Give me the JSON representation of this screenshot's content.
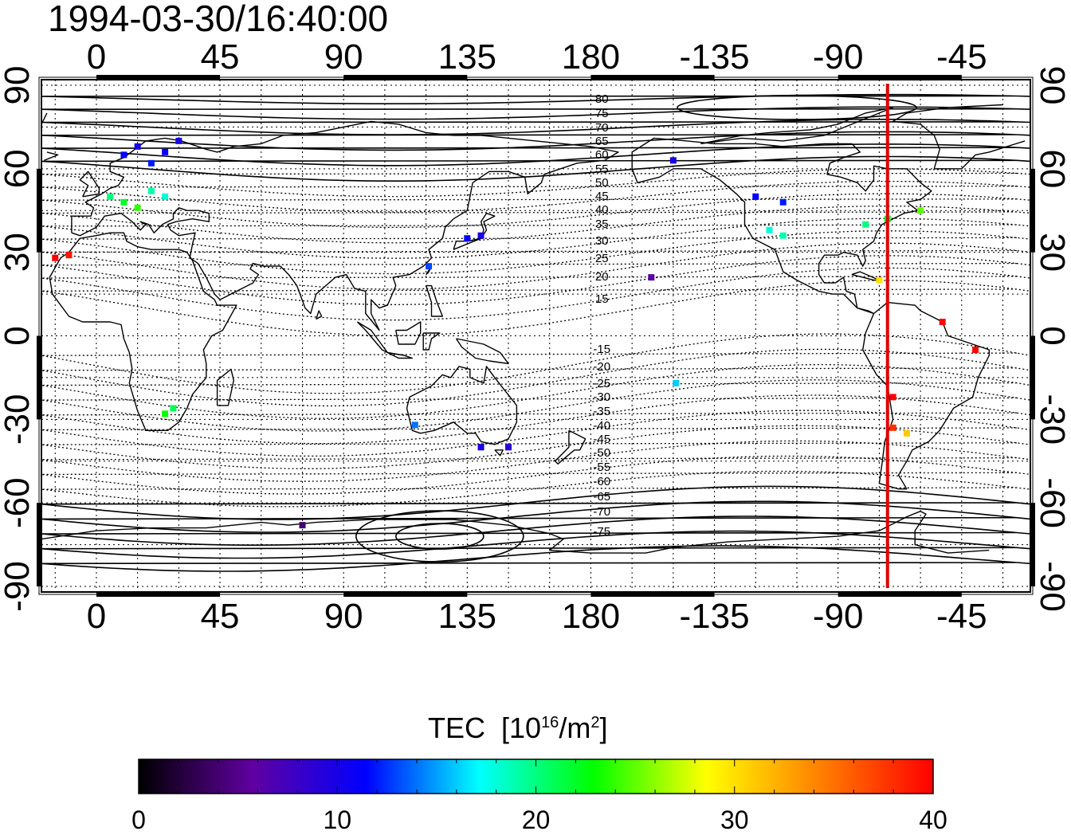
{
  "title": "1994-03-30/16:40:00",
  "map": {
    "lon_ticks": [
      "0",
      "45",
      "90",
      "135",
      "180",
      "-135",
      "-90",
      "-45"
    ],
    "lat_ticks": [
      "90",
      "60",
      "30",
      "0",
      "-30",
      "-60",
      "-90"
    ],
    "lon_range": [
      -20,
      340
    ],
    "lat_range": [
      -92,
      92
    ],
    "grid": "dotted",
    "coastline": "world",
    "terminator_longitude": -72,
    "terminator_color": "#e00000",
    "contour_labels": [
      "80",
      "75",
      "70",
      "65",
      "60",
      "55",
      "50",
      "45",
      "40",
      "35",
      "30",
      "25",
      "20",
      "15",
      "-15",
      "-20",
      "-25",
      "-30",
      "-35",
      "-40",
      "-45",
      "-50",
      "-55",
      "-60",
      "-65",
      "-70",
      "-75"
    ]
  },
  "colorbar": {
    "label": "TEC",
    "unit_base": "[10",
    "unit_exp": "16",
    "unit_mid": "/m",
    "unit_sq": "2",
    "unit_end": "]",
    "ticks": [
      "0",
      "10",
      "20",
      "30",
      "40"
    ],
    "range": [
      0,
      40
    ],
    "colors": [
      "#000000",
      "#6000a0",
      "#0000ff",
      "#00ffff",
      "#00ff00",
      "#ffff00",
      "#ff8000",
      "#ff0000"
    ]
  },
  "chart_data": {
    "type": "scatter",
    "x_label": "",
    "y_label": "",
    "points": [
      {
        "region": "europe-north",
        "lon": 10,
        "lat": 65,
        "tec": 11
      },
      {
        "region": "europe-north",
        "lon": 15,
        "lat": 68,
        "tec": 10
      },
      {
        "region": "europe-north",
        "lon": 20,
        "lat": 62,
        "tec": 12
      },
      {
        "region": "europe-north",
        "lon": 25,
        "lat": 66,
        "tec": 11
      },
      {
        "region": "europe-north",
        "lon": 30,
        "lat": 70,
        "tec": 10
      },
      {
        "region": "europe-mid",
        "lon": 5,
        "lat": 50,
        "tec": 20
      },
      {
        "region": "europe-mid",
        "lon": 10,
        "lat": 48,
        "tec": 22
      },
      {
        "region": "europe-mid",
        "lon": 15,
        "lat": 46,
        "tec": 24
      },
      {
        "region": "europe-mid",
        "lon": 20,
        "lat": 52,
        "tec": 19
      },
      {
        "region": "europe-mid",
        "lon": 25,
        "lat": 50,
        "tec": 18
      },
      {
        "region": "iberia",
        "lon": -15,
        "lat": 28,
        "tec": 40
      },
      {
        "region": "iberia",
        "lon": -10,
        "lat": 29,
        "tec": 39
      },
      {
        "region": "southern-africa",
        "lon": 25,
        "lat": -28,
        "tec": 23
      },
      {
        "region": "southern-africa",
        "lon": 28,
        "lat": -26,
        "tec": 21
      },
      {
        "region": "japan",
        "lon": 135,
        "lat": 35,
        "tec": 11
      },
      {
        "region": "japan",
        "lon": 140,
        "lat": 36,
        "tec": 10
      },
      {
        "region": "taiwan",
        "lon": 121,
        "lat": 25,
        "tec": 13
      },
      {
        "region": "australia-west",
        "lon": 116,
        "lat": -32,
        "tec": 14
      },
      {
        "region": "australia-south",
        "lon": 140,
        "lat": -40,
        "tec": 10
      },
      {
        "region": "australia-south",
        "lon": 150,
        "lat": -40,
        "tec": 9
      },
      {
        "region": "antarctica",
        "lon": 75,
        "lat": -68,
        "tec": 4
      },
      {
        "region": "hawaii",
        "lon": -158,
        "lat": 21,
        "tec": 6
      },
      {
        "region": "pacific-south",
        "lon": -149,
        "lat": -17,
        "tec": 16
      },
      {
        "region": "alaska",
        "lon": -150,
        "lat": 63,
        "tec": 10
      },
      {
        "region": "canada-west",
        "lon": -120,
        "lat": 50,
        "tec": 11
      },
      {
        "region": "canada-west",
        "lon": -110,
        "lat": 48,
        "tec": 12
      },
      {
        "region": "usa-west",
        "lon": -115,
        "lat": 38,
        "tec": 18
      },
      {
        "region": "usa-west",
        "lon": -110,
        "lat": 36,
        "tec": 19
      },
      {
        "region": "usa-east",
        "lon": -80,
        "lat": 40,
        "tec": 20
      },
      {
        "region": "usa-east",
        "lon": -72,
        "lat": 42,
        "tec": 22
      },
      {
        "region": "caribbean",
        "lon": -75,
        "lat": 20,
        "tec": 30
      },
      {
        "region": "newfoundland",
        "lon": -60,
        "lat": 45,
        "tec": 25
      },
      {
        "region": "brazil-north",
        "lon": -52,
        "lat": 5,
        "tec": 40
      },
      {
        "region": "brazil-east",
        "lon": -40,
        "lat": -5,
        "tec": 40
      },
      {
        "region": "chile",
        "lon": -70,
        "lat": -22,
        "tec": 40
      },
      {
        "region": "chile",
        "lon": -70,
        "lat": -33,
        "tec": 38
      },
      {
        "region": "argentina",
        "lon": -65,
        "lat": -35,
        "tec": 31
      }
    ]
  }
}
